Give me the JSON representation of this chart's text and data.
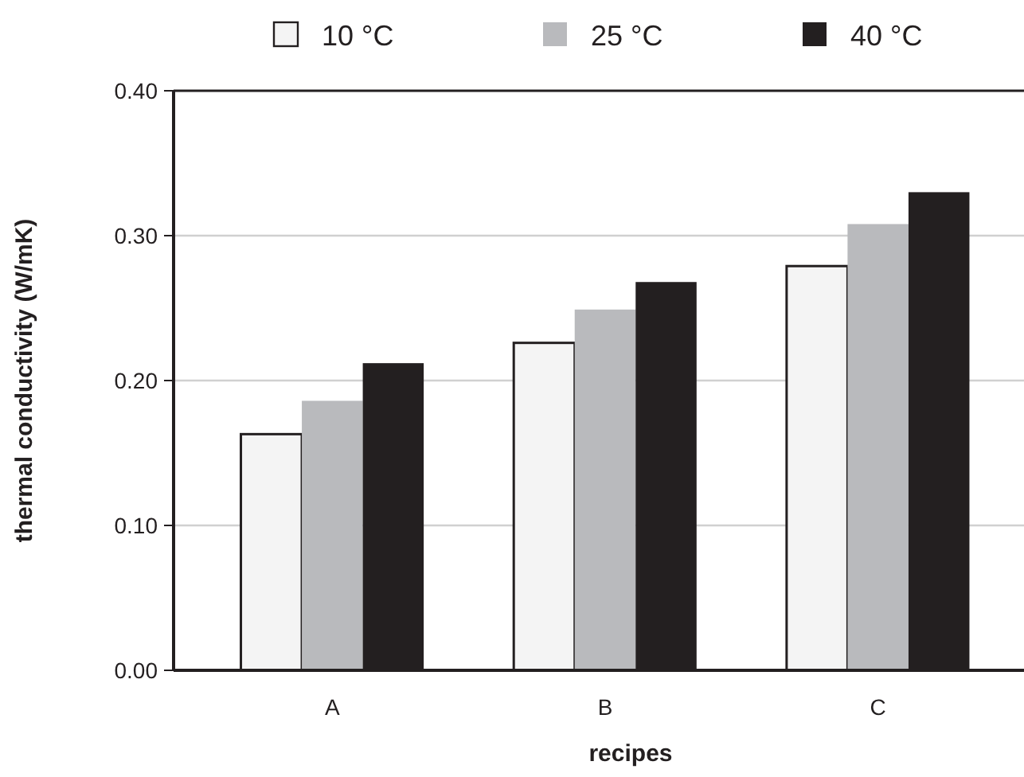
{
  "chart_data": {
    "type": "bar",
    "xlabel": "recipes",
    "ylabel": "thermal conductivity (W/mK)",
    "categories": [
      "A",
      "B",
      "C"
    ],
    "series": [
      {
        "name": "10 °C",
        "color": "#f4f4f4",
        "values": [
          0.163,
          0.226,
          0.279
        ]
      },
      {
        "name": "25 °C",
        "color": "#b9babd",
        "values": [
          0.186,
          0.249,
          0.308
        ]
      },
      {
        "name": "40 °C",
        "color": "#231f20",
        "values": [
          0.212,
          0.268,
          0.33
        ]
      }
    ],
    "ylim": [
      0,
      0.4
    ],
    "yticks": [
      {
        "value": 0,
        "label": "0.00"
      },
      {
        "value": 0.1,
        "label": "0.10"
      },
      {
        "value": 0.2,
        "label": "0.20"
      },
      {
        "value": 0.3,
        "label": "0.30"
      },
      {
        "value": 0.4,
        "label": "0.40"
      }
    ],
    "grid": "y",
    "legend": "top"
  }
}
